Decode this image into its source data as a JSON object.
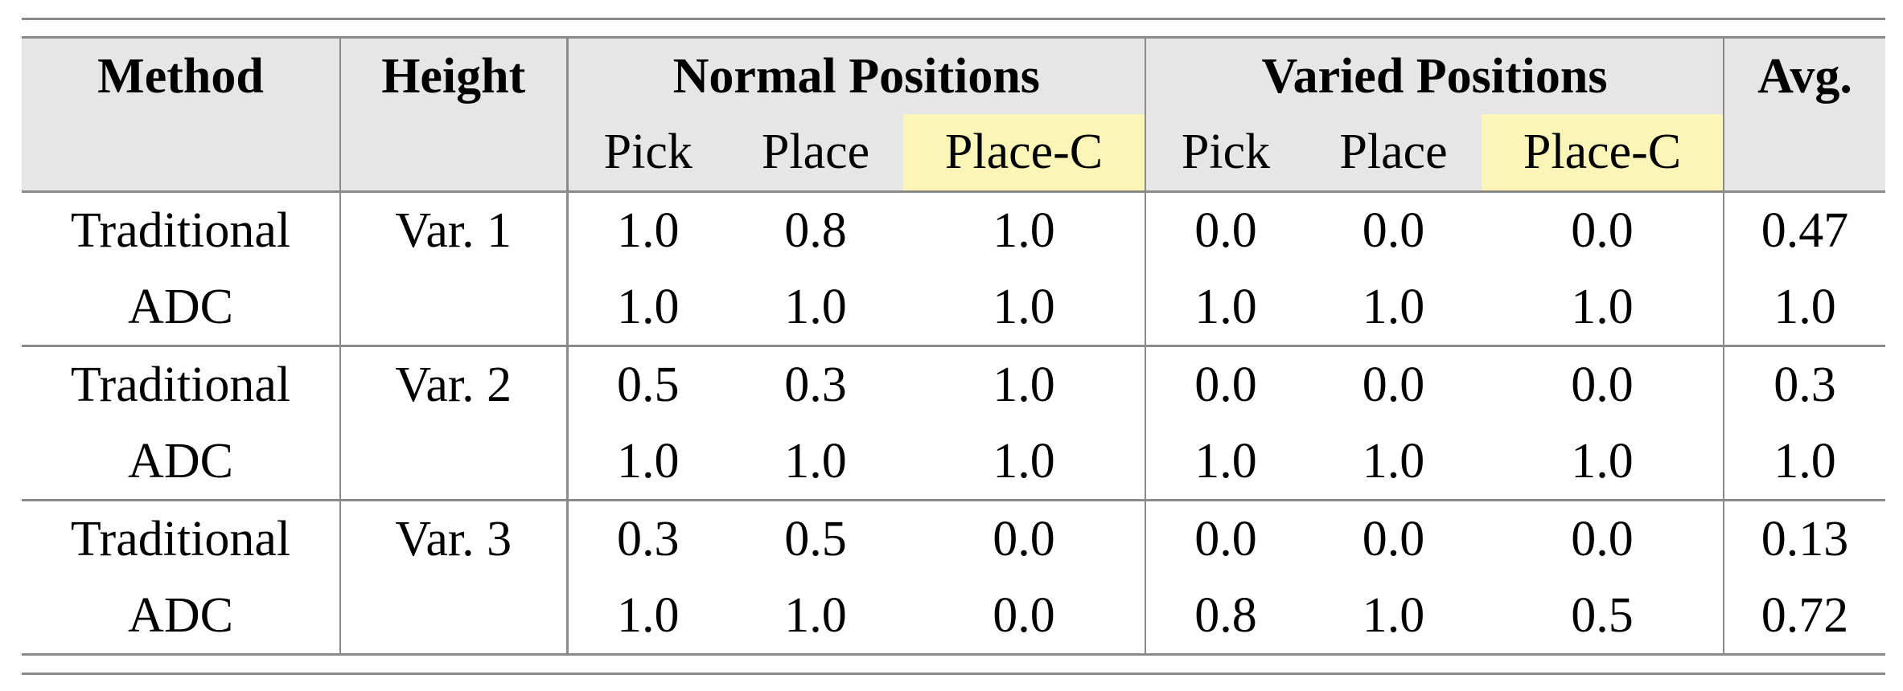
{
  "table": {
    "headers": {
      "method": "Method",
      "height": "Height",
      "normal": "Normal Positions",
      "varied": "Varied Positions",
      "avg": "Avg.",
      "sub": [
        "Pick",
        "Place",
        "Place-C",
        "Pick",
        "Place",
        "Place-C"
      ]
    },
    "highlight_color": "#fbf6b8",
    "header_bg": "#e6e6e6",
    "groups": [
      {
        "height": "Var. 1",
        "rows": [
          {
            "method": "Traditional",
            "values": [
              "1.0",
              "0.8",
              "1.0",
              "0.0",
              "0.0",
              "0.0"
            ],
            "avg": "0.47"
          },
          {
            "method": "ADC",
            "values": [
              "1.0",
              "1.0",
              "1.0",
              "1.0",
              "1.0",
              "1.0"
            ],
            "avg": "1.0"
          }
        ]
      },
      {
        "height": "Var. 2",
        "rows": [
          {
            "method": "Traditional",
            "values": [
              "0.5",
              "0.3",
              "1.0",
              "0.0",
              "0.0",
              "0.0"
            ],
            "avg": "0.3"
          },
          {
            "method": "ADC",
            "values": [
              "1.0",
              "1.0",
              "1.0",
              "1.0",
              "1.0",
              "1.0"
            ],
            "avg": "1.0"
          }
        ]
      },
      {
        "height": "Var. 3",
        "rows": [
          {
            "method": "Traditional",
            "values": [
              "0.3",
              "0.5",
              "0.0",
              "0.0",
              "0.0",
              "0.0"
            ],
            "avg": "0.13"
          },
          {
            "method": "ADC",
            "values": [
              "1.0",
              "1.0",
              "0.0",
              "0.8",
              "1.0",
              "0.5"
            ],
            "avg": "0.72"
          }
        ]
      }
    ]
  }
}
